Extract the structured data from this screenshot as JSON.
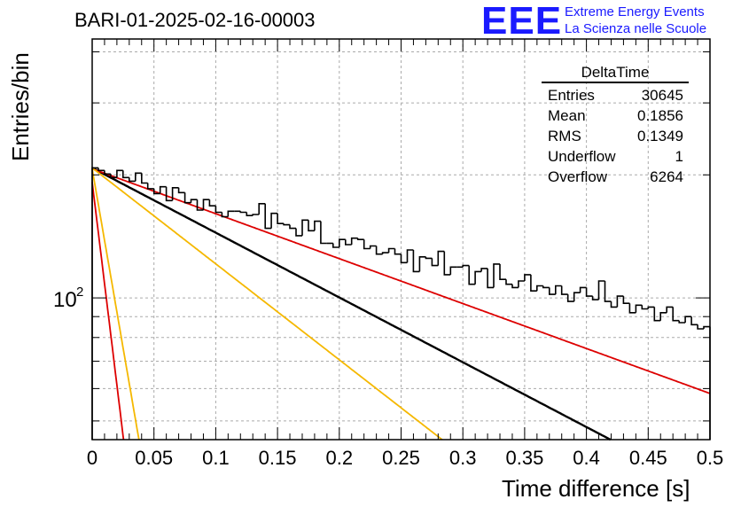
{
  "title": "BARI-01-2025-02-16-00003",
  "logo": {
    "mark": "EEE",
    "line1": "Extreme Energy Events",
    "line2": "La Scienza nelle Scuole",
    "color": "#1a1aff"
  },
  "stats": {
    "title": "DeltaTime",
    "rows": [
      {
        "label": "Entries",
        "value": "30645"
      },
      {
        "label": "Mean",
        "value": "0.1856"
      },
      {
        "label": "RMS",
        "value": "0.1349"
      },
      {
        "label": "Underflow",
        "value": "1"
      },
      {
        "label": "Overflow",
        "value": "6264"
      }
    ]
  },
  "chart_data": {
    "type": "histogram",
    "title": "BARI-01-2025-02-16-00003",
    "xlabel": "Time difference [s]",
    "ylabel": "Entries/bin",
    "xlim": [
      0,
      0.5
    ],
    "ylim": [
      45,
      430
    ],
    "yscale": "log",
    "grid": true,
    "x_ticks": [
      "0",
      "0.05",
      "0.1",
      "0.15",
      "0.2",
      "0.25",
      "0.3",
      "0.35",
      "0.4",
      "0.45",
      "0.5"
    ],
    "y_tick_label": "10",
    "y_tick_exponent": "2",
    "bin_width": 0.005,
    "histogram_values": [
      208,
      205,
      201,
      197,
      205,
      197,
      193,
      202,
      191,
      185,
      180,
      187,
      173,
      186,
      181,
      171,
      174,
      164,
      174,
      168,
      162,
      158,
      163,
      163,
      162,
      159,
      160,
      170,
      148,
      161,
      152,
      151,
      148,
      142,
      155,
      146,
      154,
      136,
      136,
      133,
      139,
      135,
      140,
      139,
      132,
      134,
      128,
      129,
      132,
      128,
      122,
      131,
      116,
      126,
      125,
      120,
      130,
      114,
      119,
      119,
      120,
      108,
      116,
      118,
      106,
      121,
      111,
      108,
      106,
      110,
      114,
      104,
      107,
      106,
      102,
      107,
      102,
      98,
      103,
      106,
      101,
      99,
      110,
      98,
      95,
      101,
      97,
      92,
      96,
      94,
      95,
      88,
      92,
      95,
      88,
      87,
      90,
      86,
      84,
      85
    ],
    "fits": [
      {
        "name": "total fit",
        "color": "#000000",
        "A": 208,
        "tau": 0.274
      },
      {
        "name": "component 1",
        "color": "#dd0000",
        "A": 207,
        "tau": 0.395
      },
      {
        "name": "component 2",
        "color": "#f5b800",
        "A": 208,
        "tau": 0.185
      },
      {
        "name": "component 3",
        "color": "#f5b800",
        "A": 207,
        "tau": 0.0248
      },
      {
        "name": "component 4",
        "color": "#dd0000",
        "A": 192,
        "tau": 0.0175
      }
    ]
  }
}
